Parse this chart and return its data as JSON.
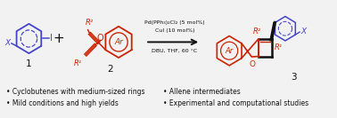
{
  "bg_color": "#f2f2f2",
  "bullet_items": [
    [
      "• Cyclobutenes with medium-sized rings",
      "• Allene intermediates"
    ],
    [
      "• Mild conditions and high yields",
      "• Experimental and computational studies"
    ]
  ],
  "reagents_line1": "Pd(PPh₃)₂Cl₂ (5 mol%)",
  "reagents_line2": "CuI (10 mol%)",
  "reagents_line3": "DBU, THF, 60 °C",
  "red_color": "#cc2200",
  "blue_color": "#4444cc",
  "black_color": "#111111",
  "gray_color": "#555555"
}
